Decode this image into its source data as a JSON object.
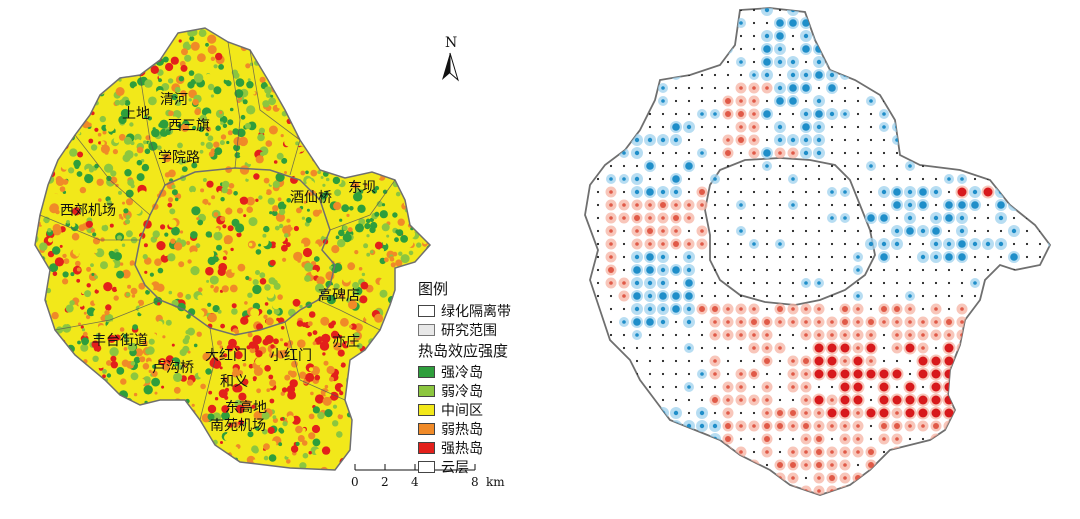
{
  "left_map": {
    "district_labels": [
      "上地",
      "清河",
      "西三旗",
      "学院路",
      "西郊机场",
      "酒仙桥",
      "东坝",
      "高碑店",
      "丰台街道",
      "卢沟桥",
      "大红门",
      "小红门",
      "亦庄",
      "和义",
      "东高地",
      "南苑机场"
    ],
    "north_label": "N",
    "scale": {
      "ticks": [
        "0",
        "2",
        "4",
        "8"
      ],
      "unit": "km"
    }
  },
  "legend": {
    "title": "图例",
    "boundary_items": [
      {
        "label": "绿化隔离带",
        "color": "#ffffff"
      },
      {
        "label": "研究范围",
        "color": "#e8e8e8"
      }
    ],
    "intensity_title": "热岛效应强度",
    "intensity_items": [
      {
        "label": "强冷岛",
        "color": "#2e9e3c"
      },
      {
        "label": "弱冷岛",
        "color": "#8cc63f"
      },
      {
        "label": "中间区",
        "color": "#f2e81a"
      },
      {
        "label": "弱热岛",
        "color": "#f08a28"
      },
      {
        "label": "强热岛",
        "color": "#e3201b"
      },
      {
        "label": "云层",
        "color": "#ffffff"
      }
    ]
  },
  "colors": {
    "strong_cold": "#2e9e3c",
    "weak_cold": "#8cc63f",
    "middle": "#f2e81a",
    "weak_heat": "#f08a28",
    "strong_heat": "#e3201b",
    "dot_cold": "#1f8ec9",
    "dot_cold_halo": "#9fd2ee",
    "dot_heat": "#e05a48",
    "dot_heat_halo": "#f6b3a3",
    "dot_strong_heat": "#d7191c",
    "boundary": "#6f6f6f"
  }
}
